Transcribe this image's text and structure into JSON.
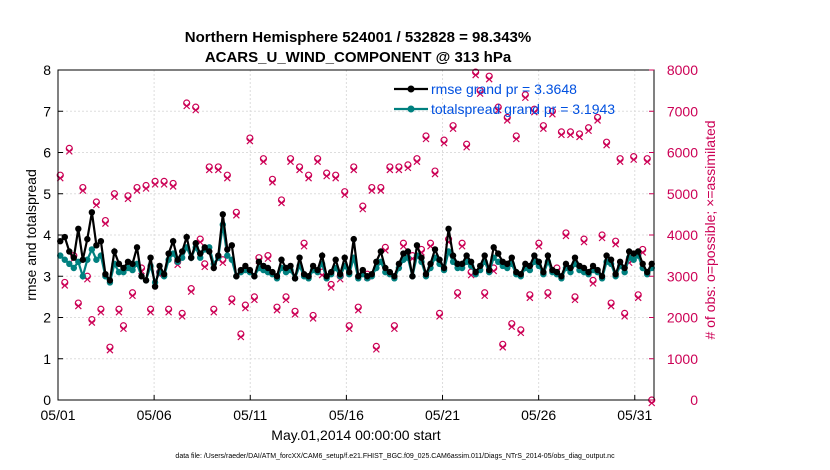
{
  "chart_data": {
    "type": "line",
    "title": "Northern Hemisphere 524001 / 532828 = 98.343%",
    "subtitle": "ACARS_U_WIND_COMPONENT @ 313 hPa",
    "xlabel": "May.01,2014 00:00:00 start",
    "ylabel": "rmse and totalspread",
    "ylabel_right": "# of obs: o=possible; ×=assimilated",
    "footer": "data file: /Users/raeder/DAI/ATM_forcXX/CAM6_setup/f.e21.FHIST_BGC.f09_025.CAM6assim.011/Diags_NTrS_2014-05/obs_diag_output.nc",
    "x_ticks": [
      "05/01",
      "05/06",
      "05/11",
      "05/16",
      "05/21",
      "05/26",
      "05/31"
    ],
    "x_tick_days": [
      1,
      6,
      11,
      16,
      21,
      26,
      31
    ],
    "xlim": [
      1,
      32
    ],
    "ylim": [
      0,
      8
    ],
    "y_ticks": [
      "0",
      "1",
      "2",
      "3",
      "4",
      "5",
      "6",
      "7",
      "8"
    ],
    "ylim_right": [
      0,
      8000
    ],
    "y_ticks_right": [
      "0",
      "1000",
      "2000",
      "3000",
      "4000",
      "5000",
      "6000",
      "7000",
      "8000"
    ],
    "grid": true,
    "legend_position": "top-right",
    "colors": {
      "rmse": "#000000",
      "spread": "#00807f",
      "obs": "#cc0055",
      "legend_text": "#0050e0"
    },
    "series": [
      {
        "name": "rmse grand pr = 3.3648",
        "axis": "left",
        "values": [
          3.85,
          3.95,
          3.6,
          3.45,
          4.15,
          3.4,
          3.9,
          4.55,
          3.75,
          3.85,
          3.05,
          2.9,
          3.6,
          3.3,
          3.2,
          3.35,
          3.3,
          3.7,
          3.0,
          2.9,
          3.45,
          2.75,
          3.25,
          3.05,
          3.55,
          3.85,
          3.4,
          3.6,
          3.95,
          3.45,
          3.8,
          3.55,
          3.7,
          3.6,
          3.2,
          3.5,
          4.5,
          3.65,
          3.75,
          3.0,
          3.15,
          3.25,
          3.15,
          3.0,
          3.35,
          3.25,
          3.2,
          3.1,
          3.0,
          3.4,
          3.2,
          3.25,
          2.95,
          3.45,
          3.05,
          3.0,
          3.25,
          3.15,
          3.5,
          3.0,
          3.1,
          3.4,
          3.05,
          3.45,
          3.1,
          3.9,
          3.0,
          3.15,
          3.0,
          3.05,
          3.35,
          3.6,
          3.2,
          3.1,
          3.0,
          3.3,
          3.55,
          3.6,
          3.0,
          3.75,
          3.45,
          3.05,
          3.3,
          3.65,
          3.4,
          3.2,
          4.15,
          3.5,
          3.3,
          3.3,
          3.5,
          3.35,
          3.1,
          3.25,
          3.5,
          3.15,
          3.7,
          3.55,
          3.35,
          3.3,
          3.45,
          3.1,
          3.05,
          3.3,
          3.25,
          3.5,
          3.35,
          3.1,
          3.5,
          3.15,
          3.1,
          3.0,
          3.3,
          3.2,
          3.45,
          3.25,
          3.2,
          3.1,
          3.25,
          3.15,
          3.0,
          3.5,
          3.4,
          3.05,
          3.35,
          3.2,
          3.6,
          3.55,
          3.6,
          3.3,
          3.1,
          3.3
        ]
      },
      {
        "name": "totalspread grand pr = 3.1943",
        "axis": "left",
        "values": [
          3.5,
          3.4,
          3.3,
          3.2,
          3.35,
          3.0,
          3.4,
          3.65,
          3.4,
          3.5,
          3.0,
          2.85,
          3.3,
          3.1,
          3.1,
          3.2,
          3.15,
          3.3,
          3.0,
          2.9,
          3.25,
          2.85,
          3.1,
          3.0,
          3.4,
          3.55,
          3.35,
          3.45,
          3.7,
          3.45,
          3.7,
          3.45,
          3.65,
          3.7,
          3.3,
          3.45,
          4.25,
          3.5,
          3.4,
          3.0,
          3.1,
          3.15,
          3.1,
          3.0,
          3.2,
          3.15,
          3.1,
          3.05,
          2.95,
          3.2,
          3.1,
          3.15,
          2.95,
          3.25,
          3.0,
          2.95,
          3.15,
          3.1,
          3.3,
          2.95,
          3.05,
          3.2,
          3.0,
          3.25,
          3.05,
          3.45,
          2.95,
          3.05,
          2.95,
          3.0,
          3.2,
          3.35,
          3.1,
          3.05,
          2.95,
          3.2,
          3.4,
          3.45,
          3.0,
          3.5,
          3.35,
          3.0,
          3.2,
          3.45,
          3.3,
          3.15,
          3.6,
          3.35,
          3.2,
          3.2,
          3.35,
          3.25,
          3.05,
          3.15,
          3.35,
          3.1,
          3.45,
          3.35,
          3.25,
          3.2,
          3.3,
          3.05,
          3.0,
          3.2,
          3.15,
          3.35,
          3.25,
          3.05,
          3.35,
          3.1,
          3.05,
          2.95,
          3.2,
          3.1,
          3.3,
          3.15,
          3.1,
          3.05,
          3.15,
          3.1,
          2.95,
          3.35,
          3.3,
          3.0,
          3.25,
          3.1,
          3.45,
          3.4,
          3.5,
          3.2,
          3.05,
          3.2
        ]
      }
    ],
    "obs_series": {
      "name": "# of obs",
      "axis": "right",
      "possible": [
        5450,
        2850,
        6100,
        3500,
        2350,
        5150,
        3000,
        1950,
        4800,
        2200,
        4350,
        1280,
        5000,
        2200,
        1800,
        4950,
        2600,
        5150,
        3200,
        5200,
        2200,
        5300,
        3100,
        5300,
        2200,
        5250,
        3350,
        2100,
        7200,
        2700,
        7100,
        3900,
        3300,
        5650,
        2200,
        5650,
        3400,
        5450,
        2450,
        4550,
        1600,
        2300,
        6350,
        2500,
        3450,
        5850,
        3500,
        5350,
        2250,
        4850,
        2500,
        5850,
        2150,
        5650,
        3800,
        5450,
        2050,
        5850,
        3100,
        5500,
        2800,
        5450,
        3000,
        5050,
        1800,
        5650,
        2250,
        4700,
        3050,
        5150,
        1300,
        5150,
        3700,
        5650,
        1800,
        5650,
        3800,
        5700,
        3500,
        5850,
        3650,
        6400,
        3800,
        5550,
        2100,
        6300,
        3900,
        6650,
        2600,
        3800,
        6200,
        3100,
        7950,
        7500,
        2600,
        7850,
        3200,
        7100,
        1350,
        6850,
        1850,
        6400,
        1700,
        7400,
        2550,
        7050,
        3800,
        6650,
        2600,
        7000,
        3200,
        6500,
        4050,
        6500,
        2500,
        6450,
        3900,
        6600,
        2900,
        6850,
        4000,
        6250,
        2350,
        3850,
        5850,
        2100,
        3400,
        5900,
        2550,
        3650,
        5850,
        0
      ]
    }
  }
}
